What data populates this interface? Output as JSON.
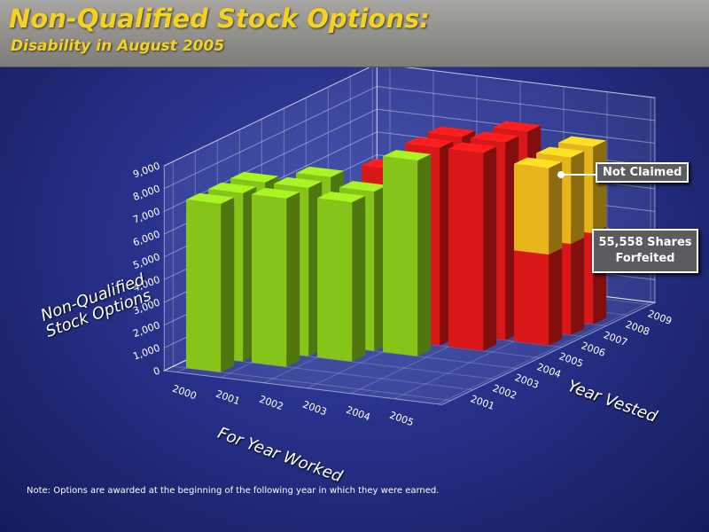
{
  "chart_data": {
    "type": "bar3d",
    "title": "Non-Qualified Stock Options:",
    "subtitle": "Disability in August 2005",
    "y_label": "Non-Qualified Stock Options",
    "x_label": "For Year Worked",
    "z_label": "Year Vested",
    "categories": [
      "2000",
      "2001",
      "2002",
      "2003",
      "2004",
      "2005"
    ],
    "depth_categories": [
      "2001",
      "2002",
      "2003",
      "2004",
      "2005",
      "2006",
      "2007",
      "2008",
      "2009"
    ],
    "ylim": [
      0,
      9000
    ],
    "yticks": [
      0,
      {
        "value": 1000,
        "label": "1,000"
      },
      {
        "value": 2000,
        "label": "2,000"
      },
      {
        "value": 3000,
        "label": "3,000"
      },
      {
        "value": 4000,
        "label": "4,000"
      },
      {
        "value": 5000,
        "label": "5,000"
      },
      {
        "value": 6000,
        "label": "6,000"
      },
      {
        "value": 7000,
        "label": "7,000"
      },
      {
        "value": 8000,
        "label": "8,000"
      },
      {
        "value": 9000,
        "label": "9,000"
      }
    ],
    "grid": true,
    "series": [
      {
        "color": "#86c41a",
        "values": [
          [
            7400,
            7400,
            7400,
            null,
            null,
            null,
            null,
            null,
            null
          ],
          [
            null,
            7400,
            7400,
            7400,
            null,
            null,
            null,
            null,
            null
          ],
          [
            null,
            null,
            7000,
            7000,
            null,
            null,
            null,
            null,
            null
          ],
          [
            null,
            null,
            null,
            8600,
            null,
            null,
            null,
            null,
            null
          ],
          [
            null,
            null,
            null,
            null,
            null,
            null,
            null,
            null,
            null
          ],
          [
            null,
            null,
            null,
            null,
            null,
            null,
            null,
            null,
            null
          ]
        ]
      },
      {
        "color": "#d81818",
        "values": [
          [
            null,
            null,
            null,
            null,
            null,
            null,
            null,
            null,
            null
          ],
          [
            null,
            null,
            null,
            null,
            null,
            null,
            null,
            null,
            null
          ],
          [
            null,
            null,
            null,
            null,
            7500,
            null,
            null,
            null,
            null
          ],
          [
            null,
            null,
            null,
            null,
            8700,
            8700,
            null,
            null,
            null
          ],
          [
            null,
            null,
            null,
            null,
            8700,
            8700,
            8700,
            null,
            null
          ],
          [
            null,
            null,
            null,
            null,
            null,
            4000,
            4000,
            4000,
            null
          ]
        ]
      },
      {
        "name": "Not Claimed",
        "color": "#e8b41c",
        "values": [
          [
            null,
            null,
            null,
            null,
            null,
            null,
            null,
            null,
            null
          ],
          [
            null,
            null,
            null,
            null,
            null,
            null,
            null,
            null,
            null
          ],
          [
            null,
            null,
            null,
            null,
            null,
            null,
            null,
            null,
            null
          ],
          [
            null,
            null,
            null,
            null,
            null,
            null,
            null,
            null,
            null
          ],
          [
            null,
            null,
            null,
            null,
            null,
            null,
            null,
            null,
            null
          ],
          [
            null,
            null,
            null,
            null,
            null,
            3800,
            3800,
            3800,
            null
          ]
        ]
      }
    ],
    "annotation": "55,558 Shares Forfeited",
    "note": "Note: Options are awarded at the beginning of the following year in which they were earned."
  }
}
